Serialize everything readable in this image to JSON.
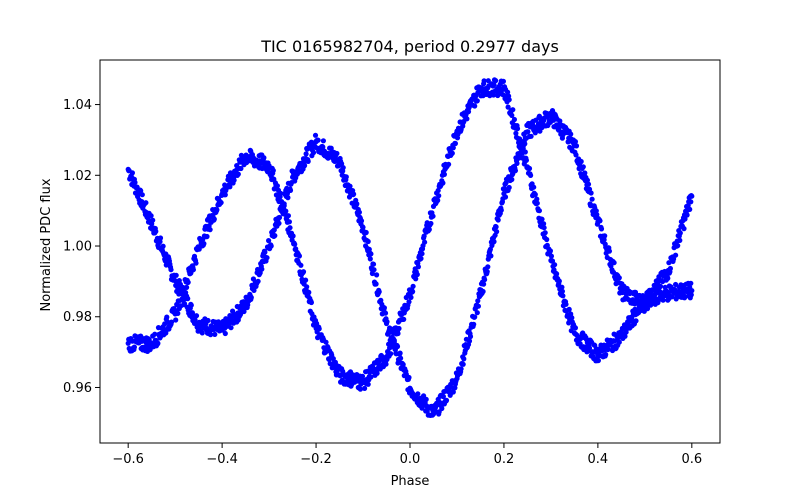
{
  "chart_data": {
    "type": "scatter",
    "title": "TIC 0165982704, period 0.2977 days",
    "xlabel": "Phase",
    "ylabel": "Normalized PDC flux",
    "xlim": [
      -0.66,
      0.66
    ],
    "ylim": [
      0.9443,
      1.0526
    ],
    "xticks": [
      -0.6,
      -0.4,
      -0.2,
      0.0,
      0.2,
      0.4,
      0.6
    ],
    "xtick_labels": [
      "−0.6",
      "−0.4",
      "−0.2",
      "0.0",
      "0.2",
      "0.4",
      "0.6"
    ],
    "yticks": [
      0.96,
      0.98,
      1.0,
      1.02,
      1.04
    ],
    "ytick_labels": [
      "0.96",
      "0.98",
      "1.00",
      "1.02",
      "1.04"
    ],
    "grid": false,
    "marker_color": "#0000ff",
    "series": [
      {
        "x": [
          -0.6,
          -0.55,
          -0.5,
          -0.45,
          -0.4,
          -0.35,
          -0.3,
          -0.25,
          -0.2,
          -0.15,
          -0.1,
          -0.05,
          0.0,
          0.05,
          0.1,
          0.15,
          0.2,
          0.25,
          0.3,
          0.35,
          0.4,
          0.45,
          0.5,
          0.55,
          0.6
        ],
        "y": [
          1.0217,
          1.0063,
          0.9902,
          0.9779,
          0.9762,
          0.9834,
          0.9998,
          1.0195,
          1.0295,
          1.0239,
          1.0053,
          0.9781,
          0.9598,
          0.9525,
          0.9625,
          0.9861,
          1.0148,
          1.0323,
          1.0368,
          1.0284,
          1.0068,
          0.9872,
          0.9834,
          0.9931,
          1.0141
        ]
      },
      {
        "x": [
          -0.6,
          -0.55,
          -0.5,
          -0.45,
          -0.4,
          -0.35,
          -0.3,
          -0.25,
          -0.2,
          -0.15,
          -0.1,
          -0.05,
          0.0,
          0.05,
          0.1,
          0.15,
          0.2,
          0.25,
          0.3,
          0.35,
          0.4,
          0.45,
          0.5,
          0.55,
          0.6
        ],
        "y": [
          0.9725,
          0.9723,
          0.9808,
          0.9994,
          1.0147,
          1.0254,
          1.0227,
          1.0028,
          0.9767,
          0.9635,
          0.9614,
          0.9687,
          0.9862,
          1.0112,
          1.0325,
          1.0447,
          1.0448,
          1.0224,
          0.9959,
          0.9754,
          0.9692,
          0.9745,
          0.9847,
          0.9868,
          0.9874
        ]
      }
    ]
  }
}
